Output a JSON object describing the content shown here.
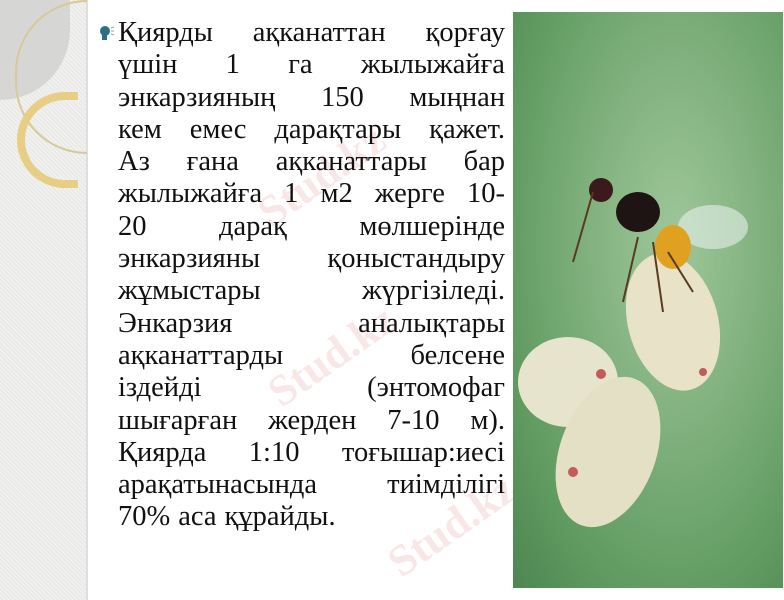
{
  "slide": {
    "bullet_icon": "speaker-bullet-icon",
    "lines": [
      [
        "Қиярды",
        "ақканаттан",
        "қорғау"
      ],
      [
        "үшін",
        "1",
        "га",
        "жылыжайға"
      ],
      [
        "энкарзияның",
        "150",
        "мыңнан"
      ],
      [
        "кем",
        "емес",
        "дарақтары",
        "қажет."
      ],
      [
        "Аз",
        "ғана",
        "ақканаттары",
        "бар"
      ],
      [
        "жылыжайға",
        "1",
        "м2",
        "жерге",
        "10-"
      ],
      [
        "20",
        "дарақ",
        "мөлшерінде"
      ],
      [
        "энкарзияны",
        "қоныстандыру"
      ],
      [
        "жұмыстары",
        "жүргізіледі."
      ],
      [
        "Энкарзия",
        "аналықтары"
      ],
      [
        "ақканаттарды",
        "белсене"
      ],
      [
        "іздейді",
        "(энтомофаг"
      ],
      [
        "шығарған",
        "жерден",
        "7-10",
        "м)."
      ],
      [
        "Қиярда",
        "1:10",
        "тоғышар:иесі"
      ],
      [
        "арақатынасында",
        "тиімділігі"
      ],
      [
        "70%",
        "аса",
        "құрайды."
      ]
    ],
    "watermark": "Stud.kz"
  },
  "colors": {
    "bullet": "#2e6f86",
    "photo_bg": "#7fb07c"
  }
}
